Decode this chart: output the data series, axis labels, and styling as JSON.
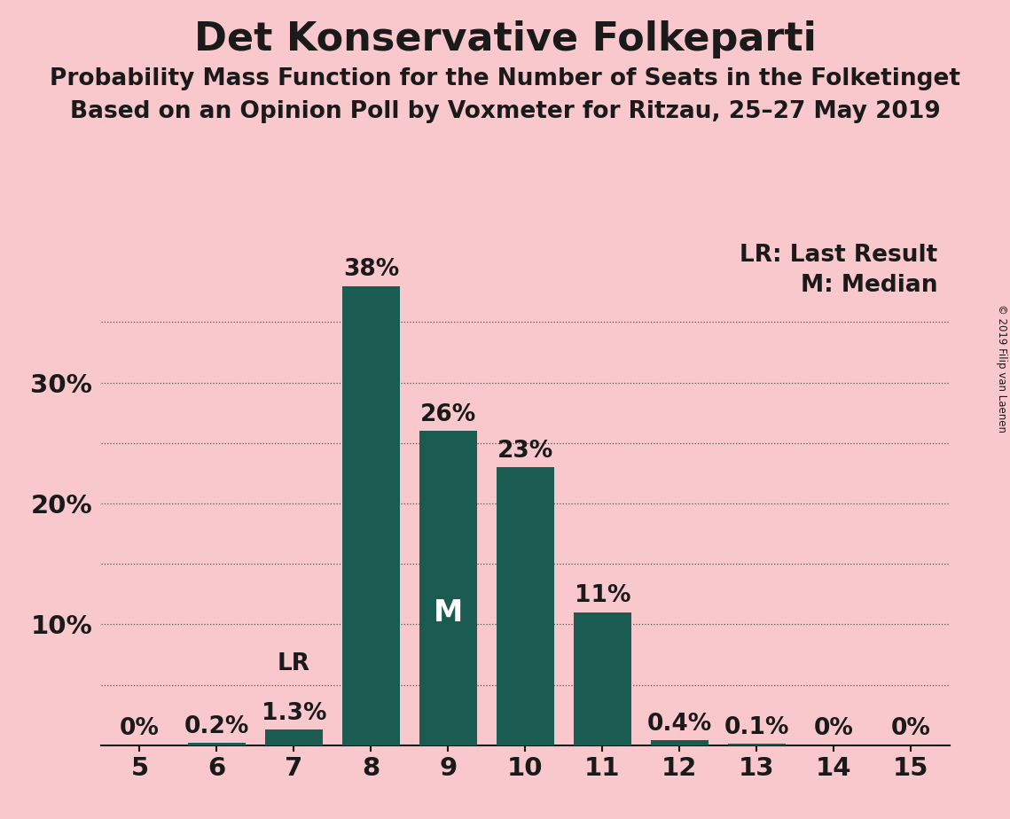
{
  "title": "Det Konservative Folkeparti",
  "subtitle1": "Probability Mass Function for the Number of Seats in the Folketinget",
  "subtitle2": "Based on an Opinion Poll by Voxmeter for Ritzau, 25–27 May 2019",
  "copyright": "© 2019 Filip van Laenen",
  "seats": [
    5,
    6,
    7,
    8,
    9,
    10,
    11,
    12,
    13,
    14,
    15
  ],
  "probabilities": [
    0.0,
    0.2,
    1.3,
    38.0,
    26.0,
    23.0,
    11.0,
    0.4,
    0.1,
    0.0,
    0.0
  ],
  "bar_color": "#1a5c52",
  "background_color": "#f9c8cd",
  "bar_labels": [
    "0%",
    "0.2%",
    "1.3%",
    "38%",
    "26%",
    "23%",
    "11%",
    "0.4%",
    "0.1%",
    "0%",
    "0%"
  ],
  "median_seat": 9,
  "lr_seat": 7,
  "ylim": [
    0,
    42
  ],
  "grid_lines": [
    5,
    10,
    15,
    20,
    25,
    30,
    35
  ],
  "legend_lr": "LR: Last Result",
  "legend_m": "M: Median",
  "lr_label": "LR",
  "m_label": "M",
  "title_fontsize": 32,
  "subtitle_fontsize": 19,
  "bar_label_fontsize": 19,
  "axis_fontsize": 21,
  "legend_fontsize": 19
}
